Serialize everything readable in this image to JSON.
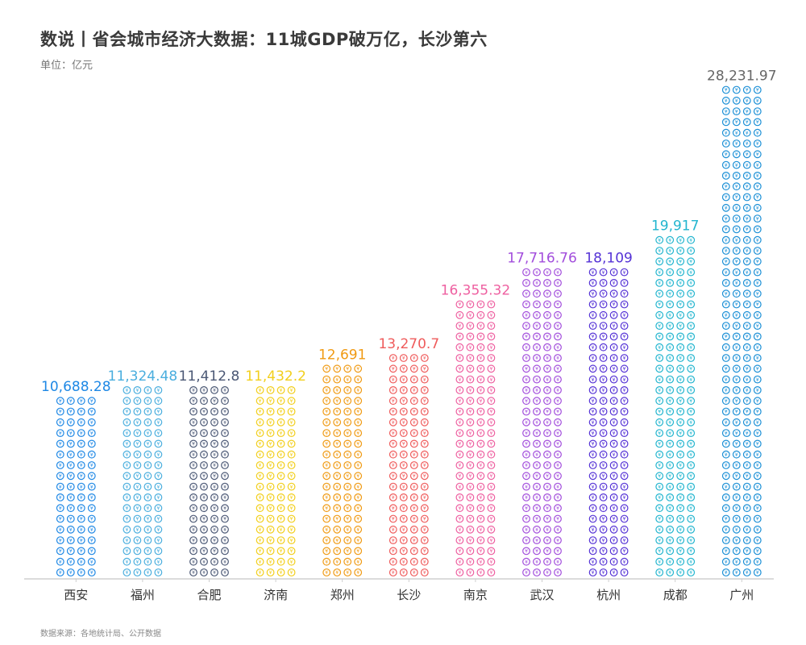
{
  "title": "数说丨省会城市经济大数据：11城GDP破万亿，长沙第六",
  "unit_label": "单位：亿元",
  "source": "数据来源：各地统计局、公开数据",
  "icon": "yen-coin-icon",
  "chart_data": {
    "type": "bar",
    "style": "pictogram",
    "title": "数说丨省会城市经济大数据：11城GDP破万亿，长沙第六",
    "ylabel": "单位：亿元",
    "grid": false,
    "categories": [
      "西安",
      "福州",
      "合肥",
      "济南",
      "郑州",
      "长沙",
      "南京",
      "武汉",
      "杭州",
      "成都",
      "广州"
    ],
    "values": [
      10688.28,
      11324.48,
      11412.8,
      11432.2,
      12691,
      13270.7,
      16355.32,
      17716.76,
      18109,
      19917,
      28231.97
    ],
    "value_labels": [
      "10,688.28",
      "11,324.48",
      "11,412.8",
      "11,432.2",
      "12,691",
      "13,270.7",
      "16,355.32",
      "17,716.76",
      "18,109",
      "19,917",
      "28,231.97"
    ],
    "colors": [
      "#1e88e5",
      "#4aaede",
      "#4b5875",
      "#f2cf1c",
      "#f09a12",
      "#ef5b5b",
      "#ee5fa0",
      "#a24ddc",
      "#5533d6",
      "#22b5cf",
      "#1a8fd6"
    ],
    "ylim": [
      0,
      28500
    ]
  }
}
